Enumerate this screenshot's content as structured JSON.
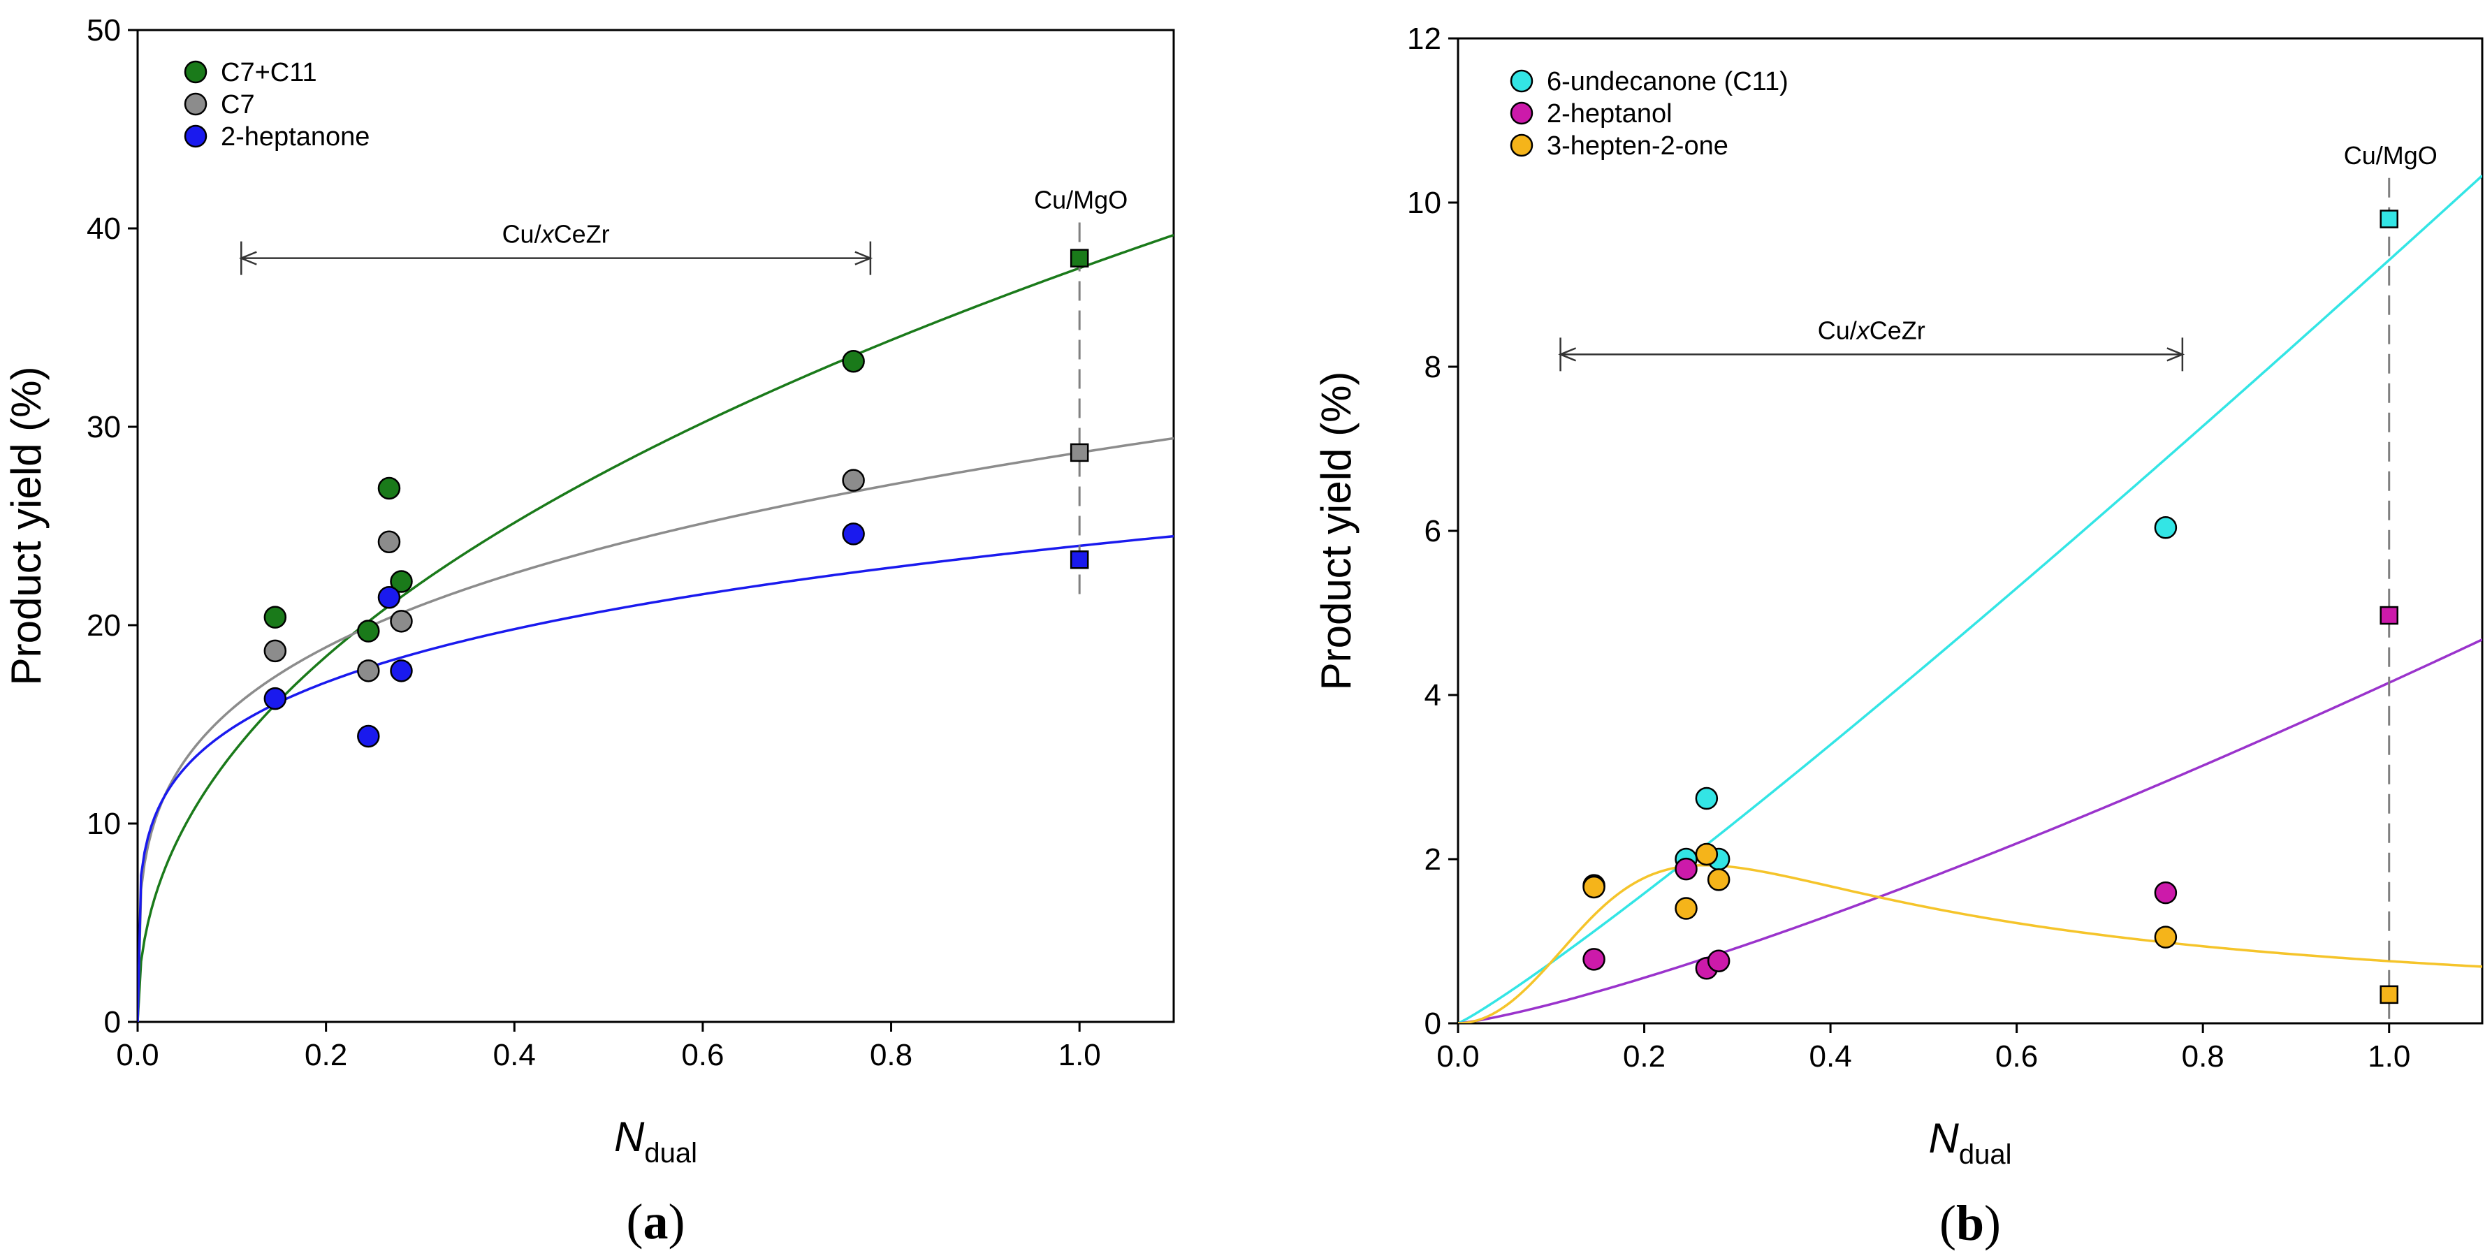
{
  "chart_data": [
    {
      "type": "scatter",
      "panel_label": "a",
      "xlabel_main": "N",
      "xlabel_sub": "dual",
      "ylabel": "Product yield (%)",
      "xlim": [
        0,
        1.1
      ],
      "ylim": [
        0,
        50
      ],
      "xticks": [
        0.0,
        0.2,
        0.4,
        0.6,
        0.8,
        1.0
      ],
      "xtick_labels": [
        "0.0",
        "0.2",
        "0.4",
        "0.6",
        "0.8",
        "1.0"
      ],
      "yticks": [
        0,
        10,
        20,
        30,
        40,
        50
      ],
      "ytick_labels": [
        "0",
        "10",
        "20",
        "30",
        "40",
        "50"
      ],
      "legend_position": "top-left",
      "series": [
        {
          "name": "C7+C11",
          "color": "#1a7a1a",
          "x": [
            0.146,
            0.245,
            0.267,
            0.28,
            0.76
          ],
          "y": [
            20.4,
            19.7,
            26.9,
            22.2,
            33.3
          ],
          "ref_x": 1.0,
          "ref_y": 38.5
        },
        {
          "name": "C7",
          "color": "#8c8c8c",
          "x": [
            0.146,
            0.245,
            0.267,
            0.28,
            0.76
          ],
          "y": [
            18.7,
            17.7,
            24.2,
            20.2,
            27.3
          ],
          "ref_x": 1.0,
          "ref_y": 28.7
        },
        {
          "name": "2-heptanone",
          "color": "#1a1aee",
          "x": [
            0.146,
            0.245,
            0.267,
            0.28,
            0.76
          ],
          "y": [
            16.3,
            14.4,
            21.4,
            17.7,
            24.6
          ],
          "ref_x": 1.0,
          "ref_y": 23.3
        }
      ],
      "fits": [
        {
          "series": "C7+C11",
          "color": "#1a7a1a",
          "model": "power",
          "a": 38.0,
          "b": 0.45
        },
        {
          "series": "C7",
          "color": "#8c8c8c",
          "model": "power",
          "a": 28.7,
          "b": 0.26
        },
        {
          "series": "2-heptanone",
          "color": "#1a1aee",
          "model": "power",
          "a": 24.0,
          "b": 0.21
        }
      ],
      "range_annotation": {
        "label_pre": "Cu/",
        "label_italic": "x",
        "label_post": "CeZr",
        "x_start": 0.11,
        "x_end": 0.778,
        "y": 38.5
      },
      "ref_annotation": {
        "label": "Cu/MgO",
        "x": 1.0,
        "y_top": 40.3,
        "y_bottom": 21.5
      }
    },
    {
      "type": "scatter",
      "panel_label": "b",
      "xlabel_main": "N",
      "xlabel_sub": "dual",
      "ylabel": "Product yield (%)",
      "xlim": [
        0,
        1.1
      ],
      "ylim": [
        0,
        12
      ],
      "xticks": [
        0.0,
        0.2,
        0.4,
        0.6,
        0.8,
        1.0
      ],
      "xtick_labels": [
        "0.0",
        "0.2",
        "0.4",
        "0.6",
        "0.8",
        "1.0"
      ],
      "yticks": [
        0,
        2,
        4,
        6,
        8,
        10,
        12
      ],
      "ytick_labels": [
        "0",
        "2",
        "4",
        "6",
        "8",
        "10",
        "12"
      ],
      "legend_position": "top-left",
      "series": [
        {
          "name": "6-undecanone (C11)",
          "color": "#33e5e5",
          "x": [
            0.146,
            0.245,
            0.267,
            0.28,
            0.76
          ],
          "y": [
            1.68,
            2.0,
            2.74,
            2.0,
            6.04
          ],
          "ref_x": 1.0,
          "ref_y": 9.8
        },
        {
          "name": "2-heptanol",
          "color": "#cc1aaa",
          "x": [
            0.146,
            0.245,
            0.267,
            0.28,
            0.76
          ],
          "y": [
            0.78,
            1.88,
            0.67,
            0.76,
            1.59
          ],
          "ref_x": 1.0,
          "ref_y": 4.97
        },
        {
          "name": "3-hepten-2-one",
          "color": "#f5b41a",
          "x": [
            0.146,
            0.245,
            0.267,
            0.28,
            0.76
          ],
          "y": [
            1.66,
            1.4,
            2.06,
            1.75,
            1.05
          ],
          "ref_x": 1.0,
          "ref_y": 0.35
        }
      ],
      "fits": [
        {
          "series": "6-undecanone (C11)",
          "color": "#33e5e5",
          "model": "power",
          "a": 9.3,
          "b": 1.1
        },
        {
          "series": "2-heptanol",
          "color": "#9a33cc",
          "model": "power",
          "a": 4.15,
          "b": 1.25
        },
        {
          "series": "3-hepten-2-one",
          "color": "#f5c42a",
          "model": "rise_decay",
          "a": 1.82,
          "x0": 0.21
        }
      ],
      "range_annotation": {
        "label_pre": "Cu/",
        "label_italic": "x",
        "label_post": "CeZr",
        "x_start": 0.11,
        "x_end": 0.778,
        "y": 8.15
      },
      "ref_annotation": {
        "label": "Cu/MgO",
        "x": 1.0,
        "y_top": 10.3,
        "y_bottom": 0
      }
    }
  ]
}
